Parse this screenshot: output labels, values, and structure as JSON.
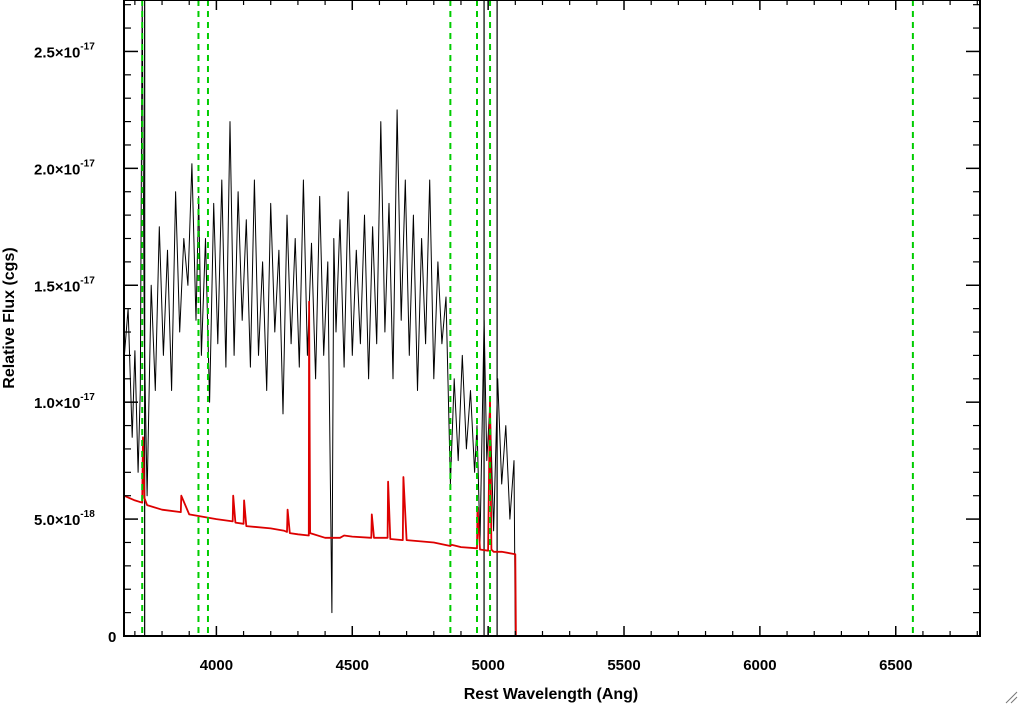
{
  "chart_data": {
    "type": "line",
    "title": "",
    "xlabel": "Rest Wavelength (Ang)",
    "ylabel": "Relative Flux (cgs)",
    "xlim": [
      3660,
      6810
    ],
    "ylim": [
      0,
      2.72e-17
    ],
    "x_ticks": [
      {
        "value": 4000,
        "label": "4000"
      },
      {
        "value": 4500,
        "label": "4500"
      },
      {
        "value": 5000,
        "label": "5000"
      },
      {
        "value": 5500,
        "label": "5500"
      },
      {
        "value": 6000,
        "label": "6000"
      },
      {
        "value": 6500,
        "label": "6500"
      }
    ],
    "y_ticks": [
      {
        "value": 0,
        "mantissa": "0",
        "exponent": ""
      },
      {
        "value": 5e-18,
        "mantissa": "5.0×10",
        "exponent": "-18"
      },
      {
        "value": 1e-17,
        "mantissa": "1.0×10",
        "exponent": "-17"
      },
      {
        "value": 1.5e-17,
        "mantissa": "1.5×10",
        "exponent": "-17"
      },
      {
        "value": 2e-17,
        "mantissa": "2.0×10",
        "exponent": "-17"
      },
      {
        "value": 2.5e-17,
        "mantissa": "2.5×10",
        "exponent": "-17"
      }
    ],
    "grid": false,
    "series": [
      {
        "color": "#000000",
        "x": [
          3660,
          3675,
          3690,
          3700,
          3712,
          3720,
          3727,
          3735,
          3745,
          3760,
          3775,
          3790,
          3805,
          3820,
          3835,
          3850,
          3865,
          3880,
          3895,
          3910,
          3925,
          3935,
          3945,
          3960,
          3975,
          3990,
          4005,
          4020,
          4035,
          4050,
          4065,
          4080,
          4095,
          4110,
          4125,
          4140,
          4155,
          4170,
          4185,
          4200,
          4215,
          4230,
          4245,
          4260,
          4275,
          4290,
          4305,
          4320,
          4335,
          4350,
          4365,
          4380,
          4395,
          4410,
          4425,
          4432,
          4440,
          4455,
          4470,
          4485,
          4500,
          4515,
          4530,
          4545,
          4560,
          4575,
          4590,
          4605,
          4620,
          4635,
          4650,
          4665,
          4680,
          4695,
          4710,
          4725,
          4740,
          4755,
          4770,
          4785,
          4800,
          4815,
          4830,
          4845,
          4861,
          4875,
          4890,
          4905,
          4920,
          4935,
          4950,
          4959,
          4970,
          4985,
          4995,
          5007,
          5020,
          5035,
          5050,
          5065,
          5080,
          5095,
          5100
        ],
        "y": [
          1.18e-17,
          1.4e-17,
          8.5e-18,
          1.22e-17,
          7e-18,
          1.05e-17,
          2.72e-17,
          1.25e-17,
          6e-18,
          1.5e-17,
          1.05e-17,
          1.75e-17,
          1.2e-17,
          1.65e-17,
          1.05e-17,
          1.9e-17,
          1.3e-17,
          1.7e-17,
          1.5e-17,
          2.02e-17,
          1.35e-17,
          1.88e-17,
          1.2e-17,
          1.7e-17,
          1e-17,
          1.85e-17,
          1.25e-17,
          1.95e-17,
          1.15e-17,
          2.2e-17,
          1.2e-17,
          1.9e-17,
          1.35e-17,
          1.78e-17,
          1.15e-17,
          1.95e-17,
          1.2e-17,
          1.6e-17,
          1.05e-17,
          1.85e-17,
          1.3e-17,
          1.65e-17,
          9.5e-18,
          1.8e-17,
          1.25e-17,
          1.7e-17,
          1.15e-17,
          1.95e-17,
          1.2e-17,
          1.68e-17,
          1.1e-17,
          1.88e-17,
          1.2e-17,
          1.6e-17,
          1e-18,
          1.7e-17,
          1.3e-17,
          1.78e-17,
          1.15e-17,
          1.9e-17,
          1.2e-17,
          1.65e-17,
          1.25e-17,
          1.8e-17,
          1.1e-17,
          1.75e-17,
          1.25e-17,
          2.2e-17,
          1.3e-17,
          1.85e-17,
          1.1e-17,
          2.25e-17,
          1.35e-17,
          1.95e-17,
          1.2e-17,
          1.8e-17,
          1.05e-17,
          1.7e-17,
          1.25e-17,
          1.95e-17,
          1.1e-17,
          1.6e-17,
          1.25e-17,
          1.45e-17,
          6.5e-18,
          1.1e-17,
          7.5e-18,
          1.2e-17,
          8e-18,
          1.05e-17,
          7e-18,
          9e-18,
          4e-18,
          1.35e-17,
          7.5e-18,
          1e-17,
          4.5e-18,
          1.1e-17,
          6.5e-18,
          9e-18,
          5e-18,
          7.5e-18,
          0.0
        ]
      },
      {
        "color": "#dd0000",
        "x": [
          3660,
          3700,
          3727,
          3730,
          3735,
          3745,
          3800,
          3869,
          3871,
          3900,
          4000,
          4060,
          4062,
          4070,
          4100,
          4102,
          4110,
          4200,
          4250,
          4260,
          4262,
          4270,
          4300,
          4340,
          4341,
          4345,
          4400,
          4455,
          4470,
          4500,
          4570,
          4572,
          4580,
          4630,
          4632,
          4640,
          4686,
          4688,
          4700,
          4800,
          4861,
          4865,
          4900,
          4959,
          4961,
          4970,
          5000,
          5007,
          5012,
          5020,
          5050,
          5100,
          5102,
          5110,
          6810
        ],
        "y": [
          6e-18,
          5.8e-18,
          5.7e-18,
          8.5e-18,
          5.9e-18,
          5.6e-18,
          5.4e-18,
          5.3e-18,
          6e-18,
          5.2e-18,
          5e-18,
          4.9e-18,
          6e-18,
          4.85e-18,
          4.8e-18,
          5.8e-18,
          4.7e-18,
          4.6e-18,
          4.5e-18,
          4.45e-18,
          5.4e-18,
          4.4e-18,
          4.35e-18,
          4.3e-18,
          1.43e-17,
          4.4e-18,
          4.2e-18,
          4.2e-18,
          4.3e-18,
          4.25e-18,
          4.2e-18,
          5.2e-18,
          4.2e-18,
          4.2e-18,
          6.6e-18,
          4.15e-18,
          4.1e-18,
          6.8e-18,
          4.1e-18,
          4e-18,
          3.85e-18,
          3.9e-18,
          3.8e-18,
          3.75e-18,
          5.5e-18,
          3.7e-18,
          3.65e-18,
          1.02e-17,
          3.7e-18,
          3.6e-18,
          3.6e-18,
          3.5e-18,
          0.0,
          0.0,
          0.0
        ]
      }
    ],
    "reference_lines": {
      "color": "#00cc00",
      "style": "dashed",
      "x": [
        3727,
        3934,
        3969,
        4861,
        4959,
        5007,
        6563
      ]
    },
    "solid_vertical_lines": {
      "color": "#000000",
      "x": [
        3736,
        4985,
        5033
      ]
    }
  }
}
